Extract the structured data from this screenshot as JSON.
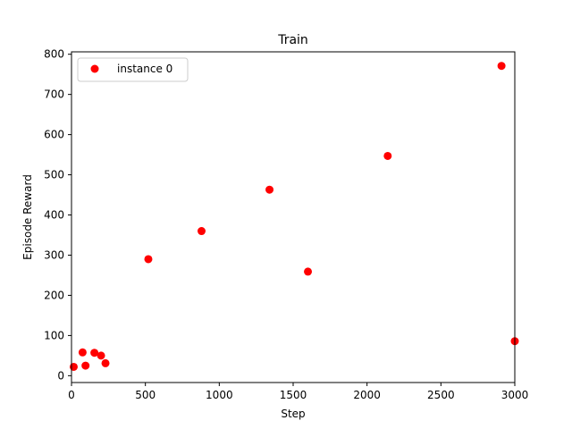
{
  "chart_data": {
    "type": "scatter",
    "title": "Train",
    "xlabel": "Step",
    "ylabel": "Episode Reward",
    "xlim": [
      0,
      3000
    ],
    "ylim": [
      -17,
      806
    ],
    "xticks": [
      0,
      500,
      1000,
      1500,
      2000,
      2500,
      3000
    ],
    "yticks": [
      0,
      100,
      200,
      300,
      400,
      500,
      600,
      700,
      800
    ],
    "grid": false,
    "legend_position": "top-left",
    "series": [
      {
        "name": "instance 0",
        "color": "#ff0000",
        "x": [
          15,
          75,
          95,
          155,
          200,
          230,
          520,
          880,
          1340,
          1600,
          2140,
          2910,
          3000
        ],
        "y": [
          22,
          58,
          25,
          57,
          50,
          31,
          290,
          360,
          463,
          259,
          547,
          771,
          86
        ]
      }
    ]
  }
}
